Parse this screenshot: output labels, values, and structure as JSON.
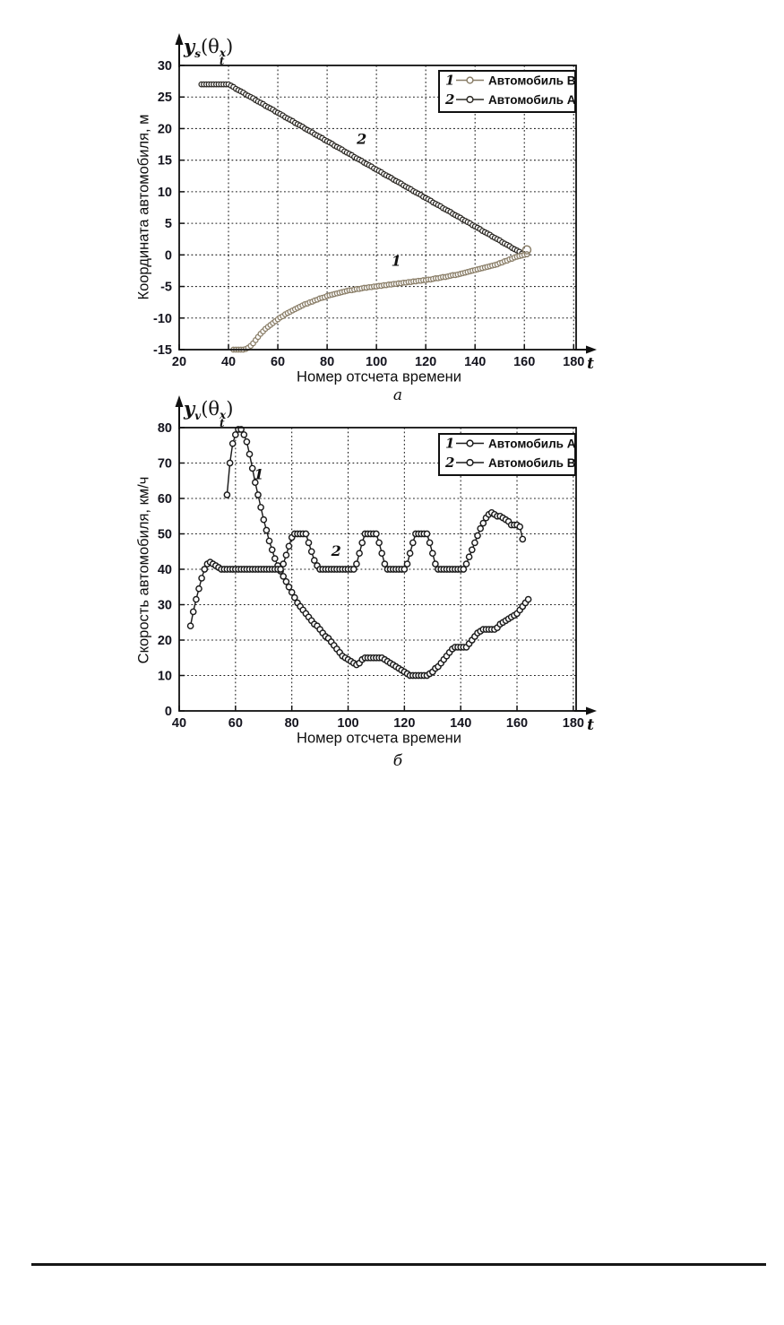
{
  "figure": {
    "captions": {
      "a": "a",
      "b": "б"
    }
  },
  "chart_data": [
    {
      "type": "line",
      "panel": "a",
      "title_math": {
        "var": "y",
        "var_sub": "s",
        "open": "(",
        "arg": "θ",
        "arg_sub": "t",
        "arg_sup": "x",
        "close": ")"
      },
      "xlabel": "Номер отсчета времени",
      "ylabel": "Координата автомобиля, м",
      "x_arrow_label": "t",
      "xlim": [
        20,
        181
      ],
      "ylim": [
        -15,
        30
      ],
      "xticks": [
        20,
        40,
        60,
        80,
        100,
        120,
        140,
        160,
        180
      ],
      "yticks": [
        -15,
        -10,
        -5,
        0,
        5,
        10,
        15,
        20,
        25,
        30
      ],
      "grid": true,
      "legend": {
        "position": "top-right",
        "entries": [
          {
            "index": "1",
            "label": "Автомобиль B",
            "color": "#8a7e68"
          },
          {
            "index": "2",
            "label": "Автомобиль A",
            "color": "#2e2b26"
          }
        ]
      },
      "annotations": [
        {
          "text": "2",
          "t": 92,
          "v": 17.6
        },
        {
          "text": "1",
          "t": 106,
          "v": -1.7
        }
      ],
      "series": [
        {
          "name": "Автомобиль A",
          "curve_index": "2",
          "color": "#2e2b26",
          "marker": "o",
          "t0": 29,
          "dt": 1,
          "values": [
            27,
            27,
            27,
            27,
            27,
            27,
            27,
            27,
            27,
            27,
            27,
            27,
            26.8,
            26.6,
            26.3,
            26.1,
            25.9,
            25.7,
            25.4,
            25.2,
            25,
            24.8,
            24.5,
            24.3,
            24.1,
            23.9,
            23.6,
            23.4,
            23.2,
            23,
            22.7,
            22.5,
            22.3,
            22.1,
            21.8,
            21.6,
            21.4,
            21.2,
            20.9,
            20.7,
            20.5,
            20.3,
            20,
            19.8,
            19.6,
            19.4,
            19.1,
            18.9,
            18.7,
            18.5,
            18.2,
            18,
            17.8,
            17.6,
            17.3,
            17.1,
            16.9,
            16.7,
            16.4,
            16.2,
            16,
            15.8,
            15.5,
            15.3,
            15.1,
            14.9,
            14.6,
            14.4,
            14.2,
            14,
            13.7,
            13.5,
            13.3,
            13.1,
            12.8,
            12.6,
            12.4,
            12.2,
            11.9,
            11.7,
            11.5,
            11.3,
            11,
            10.8,
            10.6,
            10.4,
            10.1,
            9.9,
            9.7,
            9.5,
            9.2,
            9,
            8.8,
            8.6,
            8.3,
            8.1,
            7.9,
            7.7,
            7.4,
            7.2,
            7,
            6.8,
            6.5,
            6.3,
            6.1,
            5.9,
            5.6,
            5.4,
            5.2,
            5,
            4.7,
            4.5,
            4.3,
            4.1,
            3.8,
            3.6,
            3.4,
            3.2,
            2.9,
            2.7,
            2.5,
            2.3,
            2,
            1.8,
            1.6,
            1.4,
            1.1,
            0.9,
            0.7,
            0.5,
            0.2,
            0,
            0.1
          ]
        },
        {
          "name": "Автомобиль B",
          "curve_index": "1",
          "color": "#8a7e68",
          "marker": "o",
          "t0": 42,
          "dt": 1,
          "values": [
            -15,
            -15,
            -15,
            -15,
            -15,
            -14.9,
            -14.7,
            -14.4,
            -14,
            -13.5,
            -13,
            -12.5,
            -12.1,
            -11.7,
            -11.4,
            -11.1,
            -10.8,
            -10.5,
            -10.2,
            -9.9,
            -9.7,
            -9.4,
            -9.2,
            -9,
            -8.8,
            -8.6,
            -8.4,
            -8.2,
            -8,
            -7.8,
            -7.7,
            -7.5,
            -7.4,
            -7.2,
            -7.1,
            -6.9,
            -6.8,
            -6.7,
            -6.5,
            -6.4,
            -6.3,
            -6.2,
            -6.1,
            -6,
            -5.9,
            -5.8,
            -5.7,
            -5.6,
            -5.6,
            -5.5,
            -5.4,
            -5.4,
            -5.3,
            -5.2,
            -5.2,
            -5.1,
            -5.1,
            -5,
            -5,
            -4.9,
            -4.9,
            -4.8,
            -4.8,
            -4.7,
            -4.7,
            -4.6,
            -4.6,
            -4.5,
            -4.5,
            -4.4,
            -4.4,
            -4.3,
            -4.3,
            -4.2,
            -4.2,
            -4.1,
            -4.1,
            -4,
            -4,
            -3.9,
            -3.9,
            -3.8,
            -3.7,
            -3.7,
            -3.6,
            -3.5,
            -3.5,
            -3.4,
            -3.3,
            -3.2,
            -3.2,
            -3.1,
            -3,
            -2.9,
            -2.8,
            -2.7,
            -2.6,
            -2.5,
            -2.4,
            -2.3,
            -2.2,
            -2.1,
            -2,
            -1.9,
            -1.8,
            -1.7,
            -1.6,
            -1.5,
            -1.3,
            -1.2,
            -1,
            -0.9,
            -0.7,
            -0.6,
            -0.4,
            -0.3,
            -0.2,
            -0.1,
            0,
            0.1
          ],
          "end_marker": {
            "t": 161,
            "v": 0.8,
            "r": 4.5
          }
        }
      ]
    },
    {
      "type": "line",
      "panel": "b",
      "title_math": {
        "var": "y",
        "var_sub": "v",
        "open": "(",
        "arg": "θ",
        "arg_sub": "t",
        "arg_sup": "x",
        "close": ")"
      },
      "xlabel": "Номер отсчета времени",
      "ylabel": "Скорость автомобиля,  км/ч",
      "x_arrow_label": "t",
      "xlim": [
        40,
        181
      ],
      "ylim": [
        0,
        80
      ],
      "xticks": [
        40,
        60,
        80,
        100,
        120,
        140,
        160,
        180
      ],
      "yticks": [
        0,
        10,
        20,
        30,
        40,
        50,
        60,
        70,
        80
      ],
      "grid": true,
      "legend": {
        "position": "top-right",
        "entries": [
          {
            "index": "1",
            "label": "Автомобиль A",
            "color": "#1b1b1b"
          },
          {
            "index": "2",
            "label": "Автомобиль B",
            "color": "#1b1b1b"
          }
        ]
      },
      "annotations": [
        {
          "text": "1",
          "t": 66.5,
          "v": 65.5
        },
        {
          "text": "2",
          "t": 94,
          "v": 43.8
        }
      ],
      "series": [
        {
          "name": "Автомобиль A",
          "curve_index": "1",
          "color": "#1b1b1b",
          "marker": "o",
          "t0": 57,
          "dt": 1,
          "values": [
            61,
            70,
            75.5,
            78,
            79.5,
            79.5,
            78,
            76,
            72.5,
            68.5,
            64.5,
            61,
            57.5,
            54,
            51,
            48,
            45.5,
            43,
            41,
            39.5,
            38,
            36.5,
            35,
            33.5,
            32,
            30.5,
            29.5,
            28.5,
            27.5,
            26.5,
            25.5,
            24.5,
            24,
            23,
            22,
            21,
            20.5,
            19.5,
            18.5,
            17.5,
            16.5,
            15.5,
            15,
            14.5,
            14,
            13.5,
            13,
            13.5,
            14.5,
            15,
            15,
            15,
            15,
            15,
            15,
            15,
            14.5,
            14,
            13.5,
            13,
            12.5,
            12,
            11.5,
            11,
            10.5,
            10,
            10,
            10,
            10,
            10,
            10,
            10,
            10.5,
            11,
            12,
            12.5,
            13.5,
            14.5,
            15.5,
            16.5,
            17.5,
            18,
            18,
            18,
            18,
            18,
            19,
            20,
            21,
            22,
            22.5,
            23,
            23,
            23,
            23,
            23,
            23.5,
            24.5,
            25,
            25.5,
            26,
            26.5,
            27,
            27.5,
            28.5,
            29.5,
            30.5,
            31.5
          ]
        },
        {
          "name": "Автомобиль B",
          "curve_index": "2",
          "color": "#1b1b1b",
          "marker": "o",
          "t0": 44,
          "dt": 1,
          "values": [
            24,
            28,
            31.5,
            34.5,
            37.5,
            40,
            41.5,
            42,
            41.5,
            41,
            40.5,
            40,
            40,
            40,
            40,
            40,
            40,
            40,
            40,
            40,
            40,
            40,
            40,
            40,
            40,
            40,
            40,
            40,
            40,
            40,
            40,
            40,
            40,
            41.5,
            44,
            46.5,
            49,
            50,
            50,
            50,
            50,
            50,
            47.5,
            45,
            42.5,
            41,
            40,
            40,
            40,
            40,
            40,
            40,
            40,
            40,
            40,
            40,
            40,
            40,
            40,
            41.5,
            44.5,
            47.5,
            50,
            50,
            50,
            50,
            50,
            47.5,
            44.5,
            41.5,
            40,
            40,
            40,
            40,
            40,
            40,
            40,
            41.5,
            44.5,
            47.5,
            50,
            50,
            50,
            50,
            50,
            47.5,
            44.5,
            41.5,
            40,
            40,
            40,
            40,
            40,
            40,
            40,
            40,
            40,
            40,
            41.5,
            43.5,
            45.5,
            47.5,
            49.5,
            51.5,
            53,
            54.5,
            55.5,
            56,
            55.5,
            55,
            55,
            54.5,
            54,
            53.5,
            52.5,
            52.5,
            52.5,
            52,
            48.5
          ]
        }
      ]
    }
  ]
}
